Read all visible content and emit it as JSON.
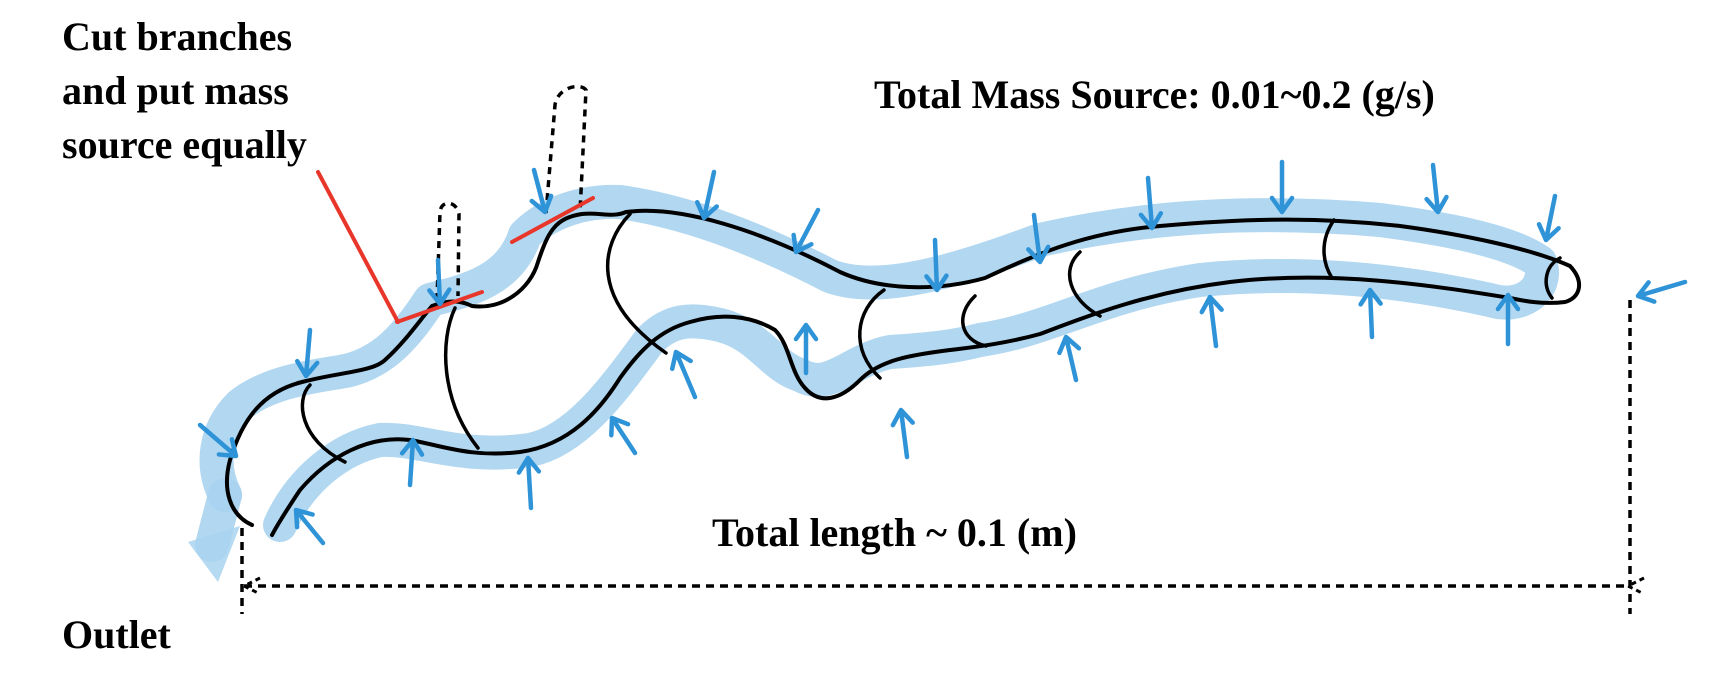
{
  "labels": {
    "cut_note": [
      "Cut branches",
      "and put mass",
      "source equally"
    ],
    "mass_source": "Total Mass Source: 0.01~0.2 (g/s)",
    "length": "Total length ~ 0.1 (m)",
    "outlet": "Outlet"
  },
  "colors": {
    "glow": "#a9d3f0",
    "arrow": "#2f93d8",
    "cut": "#e8372a",
    "wall": "#000000"
  },
  "icons": {
    "inflow_arrow": "mass-source-arrow-icon",
    "outlet_arrow": "outlet-arrow-icon",
    "dimension_arrow": "dimension-arrowhead-icon"
  }
}
